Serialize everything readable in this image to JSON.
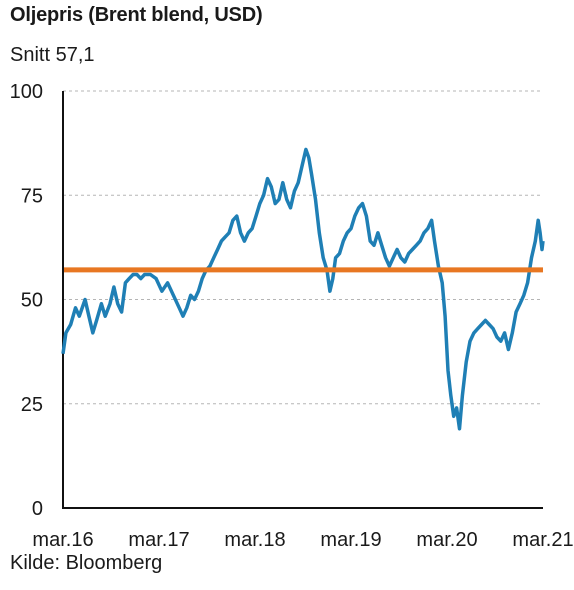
{
  "chart_data": {
    "type": "line",
    "title": "Oljepris (Brent blend, USD)",
    "subtitle": "Snitt 57,1",
    "source": "Kilde: Bloomberg",
    "ylim": [
      0,
      100
    ],
    "yticks": [
      "0",
      "25",
      "50",
      "75",
      "100"
    ],
    "xticks": [
      {
        "label": "mar.16",
        "t": 2016.17
      },
      {
        "label": "mar.17",
        "t": 2017.17
      },
      {
        "label": "mar.18",
        "t": 2018.17
      },
      {
        "label": "mar.19",
        "t": 2019.17
      },
      {
        "label": "mar.20",
        "t": 2020.17
      },
      {
        "label": "mar.21",
        "t": 2021.17
      }
    ],
    "x_range": [
      2016.17,
      2021.17
    ],
    "grid": "horizontal dashed",
    "average": 57.1,
    "colors": {
      "series": "#1f7fb5",
      "average": "#e87722"
    },
    "series": [
      {
        "points": [
          [
            2016.17,
            37
          ],
          [
            2016.2,
            42
          ],
          [
            2016.25,
            44
          ],
          [
            2016.3,
            48
          ],
          [
            2016.34,
            46
          ],
          [
            2016.4,
            50
          ],
          [
            2016.44,
            46
          ],
          [
            2016.48,
            42
          ],
          [
            2016.52,
            45
          ],
          [
            2016.57,
            49
          ],
          [
            2016.61,
            46
          ],
          [
            2016.66,
            49
          ],
          [
            2016.7,
            53
          ],
          [
            2016.74,
            49
          ],
          [
            2016.78,
            47
          ],
          [
            2016.82,
            54
          ],
          [
            2016.86,
            55
          ],
          [
            2016.9,
            56
          ],
          [
            2016.94,
            56
          ],
          [
            2016.98,
            55
          ],
          [
            2017.02,
            56
          ],
          [
            2017.08,
            56
          ],
          [
            2017.14,
            55
          ],
          [
            2017.2,
            52
          ],
          [
            2017.26,
            54
          ],
          [
            2017.32,
            51
          ],
          [
            2017.38,
            48
          ],
          [
            2017.42,
            46
          ],
          [
            2017.46,
            48
          ],
          [
            2017.5,
            51
          ],
          [
            2017.54,
            50
          ],
          [
            2017.58,
            52
          ],
          [
            2017.62,
            55
          ],
          [
            2017.66,
            57
          ],
          [
            2017.7,
            58
          ],
          [
            2017.74,
            60
          ],
          [
            2017.78,
            62
          ],
          [
            2017.82,
            64
          ],
          [
            2017.86,
            65
          ],
          [
            2017.9,
            66
          ],
          [
            2017.94,
            69
          ],
          [
            2017.98,
            70
          ],
          [
            2018.02,
            66
          ],
          [
            2018.06,
            64
          ],
          [
            2018.1,
            66
          ],
          [
            2018.14,
            67
          ],
          [
            2018.18,
            70
          ],
          [
            2018.22,
            73
          ],
          [
            2018.26,
            75
          ],
          [
            2018.3,
            79
          ],
          [
            2018.34,
            77
          ],
          [
            2018.38,
            73
          ],
          [
            2018.42,
            74
          ],
          [
            2018.46,
            78
          ],
          [
            2018.5,
            74
          ],
          [
            2018.54,
            72
          ],
          [
            2018.58,
            76
          ],
          [
            2018.62,
            78
          ],
          [
            2018.66,
            82
          ],
          [
            2018.7,
            86
          ],
          [
            2018.73,
            84
          ],
          [
            2018.76,
            80
          ],
          [
            2018.8,
            74
          ],
          [
            2018.84,
            66
          ],
          [
            2018.88,
            60
          ],
          [
            2018.92,
            57
          ],
          [
            2018.95,
            52
          ],
          [
            2018.98,
            55
          ],
          [
            2019.01,
            60
          ],
          [
            2019.05,
            61
          ],
          [
            2019.09,
            64
          ],
          [
            2019.13,
            66
          ],
          [
            2019.17,
            67
          ],
          [
            2019.21,
            70
          ],
          [
            2019.25,
            72
          ],
          [
            2019.29,
            73
          ],
          [
            2019.33,
            70
          ],
          [
            2019.37,
            64
          ],
          [
            2019.41,
            63
          ],
          [
            2019.45,
            66
          ],
          [
            2019.49,
            63
          ],
          [
            2019.53,
            60
          ],
          [
            2019.57,
            58
          ],
          [
            2019.61,
            60
          ],
          [
            2019.65,
            62
          ],
          [
            2019.69,
            60
          ],
          [
            2019.73,
            59
          ],
          [
            2019.77,
            61
          ],
          [
            2019.81,
            62
          ],
          [
            2019.85,
            63
          ],
          [
            2019.89,
            64
          ],
          [
            2019.93,
            66
          ],
          [
            2019.97,
            67
          ],
          [
            2020.01,
            69
          ],
          [
            2020.04,
            64
          ],
          [
            2020.08,
            58
          ],
          [
            2020.12,
            54
          ],
          [
            2020.15,
            46
          ],
          [
            2020.18,
            33
          ],
          [
            2020.21,
            27
          ],
          [
            2020.24,
            22
          ],
          [
            2020.27,
            24
          ],
          [
            2020.3,
            19
          ],
          [
            2020.33,
            27
          ],
          [
            2020.37,
            35
          ],
          [
            2020.41,
            40
          ],
          [
            2020.45,
            42
          ],
          [
            2020.49,
            43
          ],
          [
            2020.53,
            44
          ],
          [
            2020.57,
            45
          ],
          [
            2020.61,
            44
          ],
          [
            2020.65,
            43
          ],
          [
            2020.69,
            41
          ],
          [
            2020.73,
            40
          ],
          [
            2020.77,
            42
          ],
          [
            2020.81,
            38
          ],
          [
            2020.85,
            42
          ],
          [
            2020.89,
            47
          ],
          [
            2020.93,
            49
          ],
          [
            2020.97,
            51
          ],
          [
            2021.01,
            54
          ],
          [
            2021.05,
            60
          ],
          [
            2021.09,
            64
          ],
          [
            2021.12,
            69
          ],
          [
            2021.14,
            66
          ],
          [
            2021.16,
            62
          ],
          [
            2021.17,
            64
          ]
        ]
      }
    ]
  }
}
